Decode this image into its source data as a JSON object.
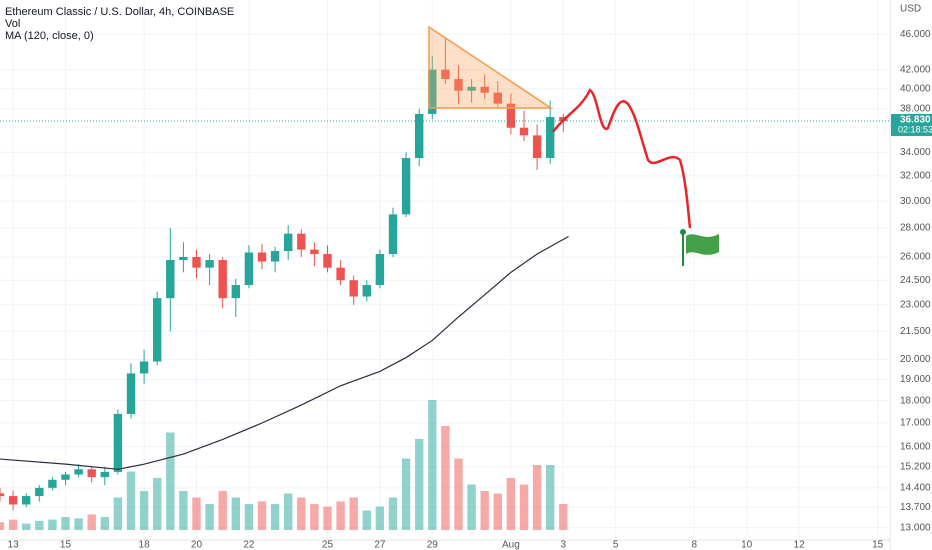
{
  "chart_data": {
    "type": "candlestick",
    "title": "Ethereum Classic / U.S. Dollar, 4h, COINBASE",
    "y_axis_label": "USD",
    "x": [
      12.5,
      13,
      13.5,
      14,
      14.5,
      15,
      15.5,
      16,
      16.5,
      17,
      17.5,
      18,
      18.5,
      19,
      19.5,
      20,
      20.5,
      21,
      21.5,
      22,
      22.5,
      23,
      23.5,
      24,
      24.5,
      25,
      25.5,
      26,
      26.5,
      27,
      27.5,
      28,
      28.5,
      29,
      29.5,
      30,
      30.5,
      31,
      31.5,
      32,
      32.5,
      33,
      33.5,
      34
    ],
    "open": [
      14.2,
      14.1,
      13.8,
      14.1,
      14.4,
      14.7,
      14.9,
      15.1,
      14.8,
      15.0,
      17.4,
      19.3,
      19.9,
      23.4,
      25.8,
      26.0,
      25.3,
      25.8,
      23.4,
      24.2,
      26.3,
      25.7,
      26.4,
      27.6,
      26.5,
      26.2,
      25.3,
      24.5,
      23.5,
      24.2,
      26.2,
      29.0,
      33.5,
      37.5,
      42.0,
      41.0,
      39.8,
      40.2,
      39.6,
      38.5,
      36.2,
      35.5,
      33.5,
      37.2
    ],
    "high": [
      14.4,
      14.3,
      14.2,
      14.5,
      14.8,
      15.0,
      15.3,
      15.2,
      15.2,
      17.6,
      19.8,
      20.5,
      23.8,
      28.0,
      27.0,
      26.5,
      26.2,
      26.0,
      24.6,
      26.8,
      26.9,
      26.7,
      28.2,
      27.9,
      27.0,
      26.8,
      25.8,
      24.8,
      24.5,
      26.5,
      29.5,
      34.0,
      38.0,
      43.5,
      45.5,
      42.5,
      41.0,
      41.5,
      40.8,
      39.5,
      37.8,
      36.5,
      38.8,
      37.5
    ],
    "low": [
      13.9,
      13.6,
      13.7,
      13.9,
      14.3,
      14.5,
      14.8,
      14.6,
      14.5,
      14.9,
      17.2,
      18.8,
      19.7,
      21.5,
      25.0,
      24.6,
      24.2,
      22.8,
      22.3,
      24.0,
      25.2,
      25.0,
      25.8,
      26.0,
      25.4,
      25.0,
      24.2,
      23.0,
      23.2,
      24.0,
      26.0,
      28.8,
      32.8,
      37.0,
      40.5,
      38.5,
      38.6,
      39.0,
      38.2,
      35.6,
      35.0,
      32.5,
      33.0,
      35.8
    ],
    "close": [
      14.1,
      13.8,
      14.1,
      14.4,
      14.7,
      14.9,
      15.1,
      14.8,
      15.0,
      17.4,
      19.3,
      19.9,
      23.4,
      25.8,
      26.0,
      25.3,
      25.8,
      23.4,
      24.2,
      26.3,
      25.7,
      26.4,
      27.6,
      26.5,
      26.2,
      25.3,
      24.5,
      23.5,
      24.2,
      26.2,
      29.0,
      33.5,
      37.5,
      42.0,
      41.0,
      39.8,
      40.2,
      39.6,
      38.5,
      36.2,
      35.5,
      33.5,
      37.2,
      36.83
    ],
    "up_color": "#26a69a",
    "down_color": "#ef5350",
    "volume": {
      "name": "Vol",
      "values": [
        6,
        8,
        5,
        7,
        8,
        10,
        9,
        12,
        10,
        25,
        45,
        30,
        40,
        75,
        30,
        25,
        20,
        30,
        25,
        20,
        22,
        20,
        28,
        25,
        20,
        18,
        22,
        25,
        15,
        18,
        25,
        55,
        70,
        100,
        80,
        55,
        35,
        30,
        28,
        40,
        35,
        50,
        50,
        20
      ]
    },
    "ma": {
      "name": "MA (120, close, 0)",
      "color": "#2a2e39",
      "x": [
        12.5,
        15,
        17,
        18,
        19.5,
        21,
        22.5,
        24,
        25.5,
        27,
        28,
        29,
        30,
        31,
        32,
        33,
        34.2
      ],
      "values": [
        15.5,
        15.3,
        15.1,
        15.3,
        15.7,
        16.3,
        17.0,
        17.8,
        18.7,
        19.4,
        20.1,
        21.0,
        22.3,
        23.6,
        25.0,
        26.2,
        27.4
      ]
    },
    "last_price": {
      "value": 36.83,
      "label": "36.830"
    },
    "countdown": "02:18:53",
    "log_scale": true,
    "grid": true,
    "ylim": [
      12.6,
      50.2
    ],
    "yticks": [
      {
        "value": 46,
        "label": "46.000"
      },
      {
        "value": 42,
        "label": "42.000"
      },
      {
        "value": 40,
        "label": "40.000"
      },
      {
        "value": 38,
        "label": "38.000"
      },
      {
        "value": 34,
        "label": "34.000"
      },
      {
        "value": 32,
        "label": "32.000"
      },
      {
        "value": 30,
        "label": "30.000"
      },
      {
        "value": 28,
        "label": "28.000"
      },
      {
        "value": 26,
        "label": "26.000"
      },
      {
        "value": 24.5,
        "label": "24.500"
      },
      {
        "value": 23,
        "label": "23.000"
      },
      {
        "value": 21.5,
        "label": "21.500"
      },
      {
        "value": 20,
        "label": "20.000"
      },
      {
        "value": 19,
        "label": "19.000"
      },
      {
        "value": 18,
        "label": "18.000"
      },
      {
        "value": 17,
        "label": "17.000"
      },
      {
        "value": 16,
        "label": "16.000"
      },
      {
        "value": 15.2,
        "label": "15.200"
      },
      {
        "value": 14.4,
        "label": "14.400"
      },
      {
        "value": 13.7,
        "label": "13.700"
      },
      {
        "value": 13,
        "label": "13.000"
      }
    ],
    "xlim": [
      12.5,
      46.47
    ],
    "xticks": [
      13,
      15,
      18,
      20,
      22,
      25,
      27,
      29,
      {
        "value": 32,
        "label": "Aug"
      },
      {
        "value": 34,
        "label": "3"
      },
      {
        "value": 36,
        "label": "5"
      },
      {
        "value": 39,
        "label": "8"
      },
      {
        "value": 41,
        "label": "10"
      },
      {
        "value": 43,
        "label": "12"
      },
      {
        "value": 46,
        "label": "15"
      }
    ]
  }
}
